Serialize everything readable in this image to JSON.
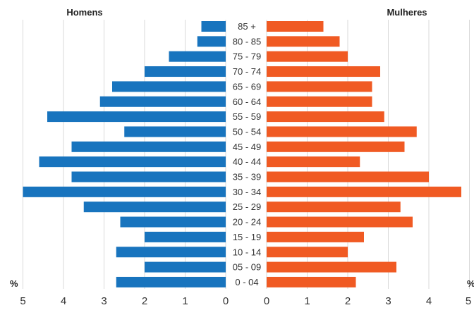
{
  "chart_data": {
    "type": "bar",
    "orientation": "horizontal",
    "layout": "population-pyramid",
    "categories": [
      "0 - 04",
      "05 - 09",
      "10 - 14",
      "15 - 19",
      "20 - 24",
      "25 - 29",
      "30 - 34",
      "35 - 39",
      "40 - 44",
      "45 - 49",
      "50 - 54",
      "55 - 59",
      "60 - 64",
      "65 - 69",
      "70 - 74",
      "75 - 79",
      "80 - 85",
      "85 +"
    ],
    "series": [
      {
        "name": "Homens",
        "color": "#1874be",
        "values": [
          2.7,
          2.0,
          2.7,
          2.0,
          2.6,
          3.5,
          5.0,
          3.8,
          4.6,
          3.8,
          2.5,
          4.4,
          3.1,
          2.8,
          2.0,
          1.4,
          0.7,
          0.6
        ]
      },
      {
        "name": "Mulheres",
        "color": "#f05a23",
        "values": [
          2.2,
          3.2,
          2.0,
          2.4,
          3.6,
          3.3,
          4.8,
          4.0,
          2.3,
          3.4,
          3.7,
          2.9,
          2.6,
          2.6,
          2.8,
          2.0,
          1.8,
          1.4
        ]
      }
    ],
    "xlim": [
      0,
      5
    ],
    "left_ticks": [
      "5",
      "4",
      "3",
      "2",
      "1",
      "0"
    ],
    "right_ticks": [
      "0",
      "1",
      "2",
      "3",
      "4",
      "5"
    ],
    "unit_label": "%",
    "grid": "vertical"
  }
}
